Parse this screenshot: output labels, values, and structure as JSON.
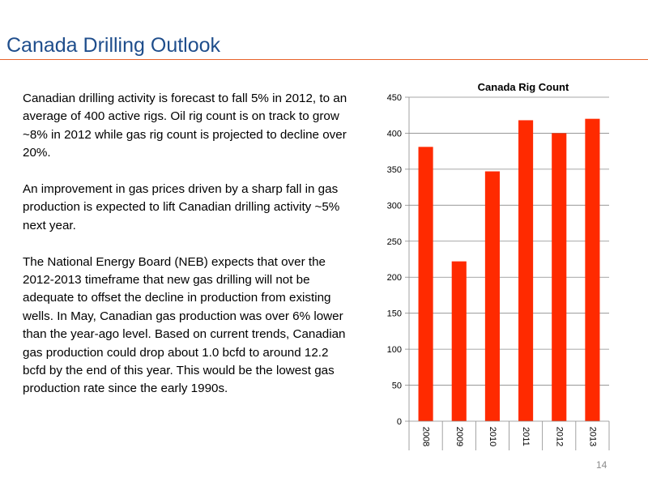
{
  "slide": {
    "title": "Canada Drilling Outlook",
    "paragraphs": [
      "Canadian drilling activity is forecast to fall 5% in 2012, to an average of 400 active rigs.  Oil rig count is on track to grow ~8% in 2012 while gas rig count is projected to decline over 20%.",
      "An improvement in gas prices driven by a sharp fall in gas production is expected to lift Canadian drilling activity ~5% next year.",
      "The National Energy Board (NEB) expects that over the 2012-2013 timeframe that new gas drilling will not be adequate to offset the decline in production from existing wells.   In May, Canadian gas production was over 6% lower than the year-ago level.  Based on current trends, Canadian gas production could drop about 1.0 bcfd to around 12.2 bcfd by the end of this year.  This would be the lowest gas production rate since the early 1990s."
    ],
    "page_number": "14"
  },
  "colors": {
    "title": "#1f4e8c",
    "rule": "#e8632a",
    "bar": "#ff2a00"
  },
  "chart_data": {
    "type": "bar",
    "title": "Canada Rig Count",
    "xlabel": "",
    "ylabel": "",
    "categories": [
      "2008",
      "2009",
      "2010",
      "2011",
      "2012",
      "2013"
    ],
    "values": [
      381,
      222,
      347,
      418,
      400,
      420
    ],
    "ylim": [
      0,
      450
    ],
    "yticks": [
      0,
      50,
      100,
      150,
      200,
      250,
      300,
      350,
      400,
      450
    ],
    "grid": true,
    "legend": "none"
  }
}
